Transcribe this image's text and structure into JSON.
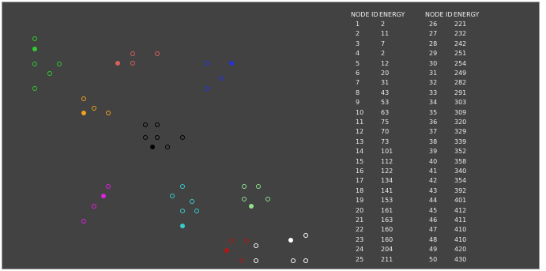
{
  "table": {
    "headers": [
      "NODE ID",
      "ENERGY",
      "NODE ID",
      "ENERGY"
    ],
    "left_rows": [
      [
        "1",
        "2"
      ],
      [
        "2",
        "11"
      ],
      [
        "3",
        "7"
      ],
      [
        "4",
        "2"
      ],
      [
        "5",
        "12"
      ],
      [
        "6",
        "20"
      ],
      [
        "7",
        "31"
      ],
      [
        "8",
        "43"
      ],
      [
        "9",
        "53"
      ],
      [
        "10",
        "63"
      ],
      [
        "11",
        "75"
      ],
      [
        "12",
        "70"
      ],
      [
        "13",
        "73"
      ],
      [
        "14",
        "101"
      ],
      [
        "15",
        "112"
      ],
      [
        "16",
        "122"
      ],
      [
        "17",
        "134"
      ],
      [
        "18",
        "141"
      ],
      [
        "19",
        "153"
      ],
      [
        "20",
        "161"
      ],
      [
        "21",
        "163"
      ],
      [
        "22",
        "160"
      ],
      [
        "23",
        "160"
      ],
      [
        "24",
        "204"
      ],
      [
        "25",
        "211"
      ]
    ],
    "right_rows": [
      [
        "26",
        "221"
      ],
      [
        "27",
        "232"
      ],
      [
        "28",
        "242"
      ],
      [
        "29",
        "251"
      ],
      [
        "30",
        "254"
      ],
      [
        "31",
        "249"
      ],
      [
        "32",
        "282"
      ],
      [
        "33",
        "291"
      ],
      [
        "34",
        "303"
      ],
      [
        "35",
        "309"
      ],
      [
        "36",
        "320"
      ],
      [
        "37",
        "329"
      ],
      [
        "38",
        "339"
      ],
      [
        "39",
        "352"
      ],
      [
        "40",
        "358"
      ],
      [
        "41",
        "340"
      ],
      [
        "42",
        "354"
      ],
      [
        "43",
        "392"
      ],
      [
        "44",
        "401"
      ],
      [
        "45",
        "412"
      ],
      [
        "46",
        "411"
      ],
      [
        "47",
        "410"
      ],
      [
        "48",
        "410"
      ],
      [
        "49",
        "420"
      ],
      [
        "50",
        "430"
      ]
    ]
  },
  "clusters": [
    {
      "name": "green-left",
      "color": "#2ecc2e",
      "nodes": [
        [
          43,
          48,
          "ring"
        ],
        [
          43,
          61,
          "filled"
        ],
        [
          43,
          80,
          "ring"
        ],
        [
          74,
          80,
          "ring"
        ],
        [
          62,
          92,
          "ring"
        ],
        [
          43,
          111,
          "ring"
        ]
      ]
    },
    {
      "name": "red",
      "color": "#d9605a",
      "nodes": [
        [
          167,
          67,
          "ring"
        ],
        [
          198,
          67,
          "ring"
        ],
        [
          148,
          79,
          "filled"
        ],
        [
          167,
          79,
          "ring"
        ]
      ]
    },
    {
      "name": "blue",
      "color": "#2230e0",
      "nodes": [
        [
          261,
          79,
          "ring"
        ],
        [
          292,
          79,
          "filled"
        ],
        [
          279,
          98,
          "ring"
        ],
        [
          261,
          111,
          "ring"
        ]
      ]
    },
    {
      "name": "orange",
      "color": "#f0a020",
      "nodes": [
        [
          105,
          124,
          "ring"
        ],
        [
          118,
          136,
          "ring"
        ],
        [
          105,
          142,
          "filled"
        ],
        [
          136,
          142,
          "ring"
        ]
      ]
    },
    {
      "name": "black",
      "color": "#000000",
      "nodes": [
        [
          183,
          157,
          "ring"
        ],
        [
          198,
          157,
          "ring"
        ],
        [
          183,
          173,
          "ring"
        ],
        [
          198,
          173,
          "ring"
        ],
        [
          230,
          173,
          "ring"
        ],
        [
          192,
          185,
          "filled"
        ],
        [
          211,
          185,
          "ring"
        ]
      ]
    },
    {
      "name": "magenta",
      "color": "#e020e0",
      "nodes": [
        [
          136,
          235,
          "ring"
        ],
        [
          130,
          247,
          "filled"
        ],
        [
          118,
          260,
          "ring"
        ],
        [
          105,
          279,
          "ring"
        ]
      ]
    },
    {
      "name": "cyan",
      "color": "#38cccc",
      "nodes": [
        [
          230,
          235,
          "ring"
        ],
        [
          217,
          247,
          "ring"
        ],
        [
          242,
          254,
          "ring"
        ],
        [
          230,
          266,
          "ring"
        ],
        [
          248,
          266,
          "ring"
        ],
        [
          230,
          285,
          "filled"
        ]
      ]
    },
    {
      "name": "light-green",
      "color": "#8fe08f",
      "nodes": [
        [
          308,
          235,
          "ring"
        ],
        [
          326,
          235,
          "ring"
        ],
        [
          308,
          251,
          "ring"
        ],
        [
          338,
          251,
          "ring"
        ],
        [
          317,
          260,
          "filled"
        ]
      ]
    },
    {
      "name": "dark-red",
      "color": "#b01818",
      "nodes": [
        [
          292,
          304,
          "ring"
        ],
        [
          311,
          304,
          "ring"
        ],
        [
          286,
          316,
          "filled"
        ],
        [
          305,
          329,
          "ring"
        ]
      ]
    },
    {
      "name": "white",
      "color": "#ffffff",
      "nodes": [
        [
          386,
          297,
          "ring"
        ],
        [
          367,
          303,
          "filled"
        ],
        [
          323,
          310,
          "ring"
        ],
        [
          323,
          329,
          "ring"
        ],
        [
          370,
          329,
          "ring"
        ],
        [
          386,
          329,
          "ring"
        ]
      ]
    }
  ]
}
